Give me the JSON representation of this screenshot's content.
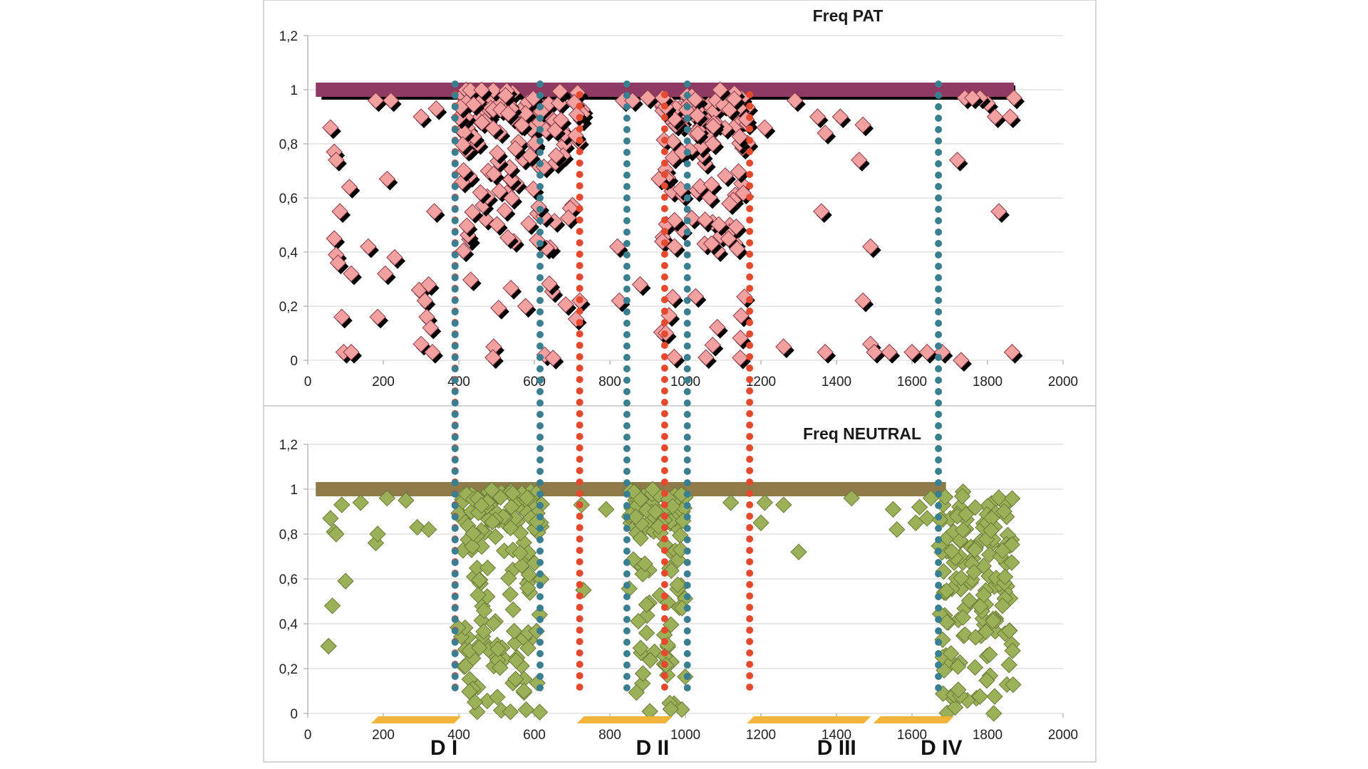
{
  "chart_data": [
    {
      "type": "scatter",
      "title": "Freq PAT",
      "xlim": [
        0,
        2000
      ],
      "ylim": [
        0,
        1.2
      ],
      "x_ticks": [
        "0",
        "200",
        "400",
        "600",
        "800",
        "1000",
        "1200",
        "1400",
        "1600",
        "1800",
        "2000"
      ],
      "y_ticks": [
        "0",
        "0,2",
        "0,4",
        "0,6",
        "0,8",
        "1",
        "1,2"
      ],
      "grid": true,
      "colors": {
        "marker": "#f2a0a0",
        "marker_edge": "#8b3a4a",
        "band": "#8e3a63",
        "shadow": "#000000"
      },
      "band": {
        "x_start": 40,
        "x_end": 1870,
        "y": 1
      },
      "clusters": [
        {
          "x_range": [
            40,
            380
          ],
          "points": [
            [
              60,
              0.86
            ],
            [
              70,
              0.77
            ],
            [
              75,
              0.74
            ],
            [
              70,
              0.45
            ],
            [
              75,
              0.39
            ],
            [
              80,
              0.36
            ],
            [
              85,
              0.55
            ],
            [
              90,
              0.16
            ],
            [
              95,
              0.03
            ],
            [
              110,
              0.64
            ],
            [
              115,
              0.32
            ],
            [
              115,
              0.03
            ],
            [
              160,
              0.42
            ],
            [
              185,
              0.16
            ],
            [
              205,
              0.32
            ],
            [
              210,
              0.67
            ],
            [
              230,
              0.38
            ],
            [
              295,
              0.26
            ],
            [
              300,
              0.06
            ],
            [
              310,
              0.22
            ],
            [
              315,
              0.16
            ],
            [
              320,
              0.28
            ],
            [
              325,
              0.12
            ],
            [
              330,
              0.03
            ],
            [
              335,
              0.55
            ],
            [
              300,
              0.9
            ],
            [
              340,
              0.93
            ],
            [
              220,
              0.96
            ],
            [
              180,
              0.96
            ]
          ]
        },
        {
          "x_range": [
            400,
            730
          ],
          "seed": 11,
          "count": 150,
          "y_dist": [
            [
              0.85,
              1.0,
              0.5
            ],
            [
              0.4,
              0.85,
              0.4
            ],
            [
              0.0,
              0.35,
              0.1
            ]
          ]
        },
        {
          "x_range": [
            930,
            1165
          ],
          "seed": 23,
          "count": 130,
          "y_dist": [
            [
              0.8,
              1.0,
              0.55
            ],
            [
              0.4,
              0.8,
              0.3
            ],
            [
              0.0,
              0.25,
              0.15
            ]
          ]
        },
        {
          "x_range": [
            700,
            930
          ],
          "points": [
            [
              720,
              0.22
            ],
            [
              820,
              0.42
            ],
            [
              825,
              0.22
            ],
            [
              835,
              0.96
            ],
            [
              860,
              0.96
            ],
            [
              880,
              0.28
            ],
            [
              900,
              0.97
            ],
            [
              930,
              0.67
            ],
            [
              940,
              0.97
            ]
          ]
        },
        {
          "x_range": [
            1165,
            1870
          ],
          "points": [
            [
              1210,
              0.86
            ],
            [
              1260,
              0.05
            ],
            [
              1290,
              0.96
            ],
            [
              1350,
              0.9
            ],
            [
              1360,
              0.55
            ],
            [
              1370,
              0.84
            ],
            [
              1370,
              0.03
            ],
            [
              1410,
              0.9
            ],
            [
              1460,
              0.74
            ],
            [
              1470,
              0.87
            ],
            [
              1470,
              0.22
            ],
            [
              1490,
              0.42
            ],
            [
              1490,
              0.06
            ],
            [
              1500,
              0.03
            ],
            [
              1540,
              0.03
            ],
            [
              1600,
              0.03
            ],
            [
              1640,
              0.03
            ],
            [
              1680,
              0.03
            ],
            [
              1720,
              0.74
            ],
            [
              1730,
              0.0
            ],
            [
              1740,
              0.97
            ],
            [
              1800,
              0.95
            ],
            [
              1820,
              0.9
            ],
            [
              1830,
              0.55
            ],
            [
              1860,
              0.9
            ],
            [
              1865,
              0.03
            ],
            [
              1870,
              0.97
            ],
            [
              1780,
              0.97
            ],
            [
              1760,
              0.97
            ]
          ]
        }
      ]
    },
    {
      "type": "scatter",
      "title": "Freq NEUTRAL",
      "xlim": [
        0,
        2000
      ],
      "ylim": [
        0,
        1.2
      ],
      "x_ticks": [
        "0",
        "200",
        "400",
        "600",
        "800",
        "1000",
        "1200",
        "1400",
        "1600",
        "1800",
        "2000"
      ],
      "y_ticks": [
        "0",
        "0,2",
        "0,4",
        "0,6",
        "0,8",
        "1",
        "1,2"
      ],
      "grid": true,
      "colors": {
        "marker": "#9cb05a",
        "marker_edge": "#6b7a35",
        "band": "#8f7a4a"
      },
      "band": {
        "x_start": 40,
        "x_end": 1690,
        "y": 1
      },
      "clusters": [
        {
          "x_range": [
            40,
            380
          ],
          "points": [
            [
              55,
              0.3
            ],
            [
              60,
              0.87
            ],
            [
              65,
              0.48
            ],
            [
              70,
              0.81
            ],
            [
              75,
              0.8
            ],
            [
              90,
              0.93
            ],
            [
              100,
              0.59
            ],
            [
              140,
              0.94
            ],
            [
              180,
              0.76
            ],
            [
              185,
              0.8
            ],
            [
              290,
              0.83
            ],
            [
              320,
              0.82
            ],
            [
              210,
              0.96
            ],
            [
              260,
              0.95
            ]
          ]
        },
        {
          "x_range": [
            395,
            620
          ],
          "seed": 37,
          "count": 160,
          "y_dist": [
            [
              0.85,
              1.0,
              0.4
            ],
            [
              0.2,
              0.85,
              0.5
            ],
            [
              0.0,
              0.2,
              0.1
            ]
          ]
        },
        {
          "x_range": [
            710,
            1000
          ],
          "points": [
            [
              725,
              0.93
            ],
            [
              730,
              0.55
            ],
            [
              790,
              0.91
            ]
          ]
        },
        {
          "x_range": [
            850,
            1000
          ],
          "seed": 53,
          "count": 110,
          "y_dist": [
            [
              0.8,
              1.0,
              0.45
            ],
            [
              0.2,
              0.8,
              0.45
            ],
            [
              0.0,
              0.2,
              0.1
            ]
          ]
        },
        {
          "x_range": [
            1100,
            1650
          ],
          "points": [
            [
              1120,
              0.94
            ],
            [
              1200,
              0.85
            ],
            [
              1210,
              0.94
            ],
            [
              1260,
              0.93
            ],
            [
              1300,
              0.72
            ],
            [
              1440,
              0.96
            ],
            [
              1550,
              0.91
            ],
            [
              1560,
              0.82
            ],
            [
              1610,
              0.85
            ],
            [
              1620,
              0.92
            ],
            [
              1640,
              0.87
            ],
            [
              1650,
              0.96
            ]
          ]
        },
        {
          "x_range": [
            1670,
            1870
          ],
          "seed": 71,
          "count": 150,
          "y_dist": [
            [
              0.7,
              1.0,
              0.45
            ],
            [
              0.2,
              0.7,
              0.4
            ],
            [
              0.0,
              0.2,
              0.15
            ]
          ]
        }
      ]
    }
  ],
  "guides": {
    "red_dot_lines_x": [
      390,
      720,
      945,
      1170
    ],
    "teal_dot_lines_x": [
      390,
      615,
      845,
      1005,
      1670
    ],
    "red_color": "#e64a2e",
    "teal_color": "#3a7f8f"
  },
  "domains": {
    "color": "#f2b53a",
    "bars": [
      {
        "label": "D I",
        "x_start": 175,
        "x_end": 395
      },
      {
        "label": "D II",
        "x_start": 720,
        "x_end": 955
      },
      {
        "label": "D III",
        "x_start": 1170,
        "x_end": 1480
      },
      {
        "label": "D IV",
        "x_start": 1505,
        "x_end": 1700
      }
    ]
  }
}
